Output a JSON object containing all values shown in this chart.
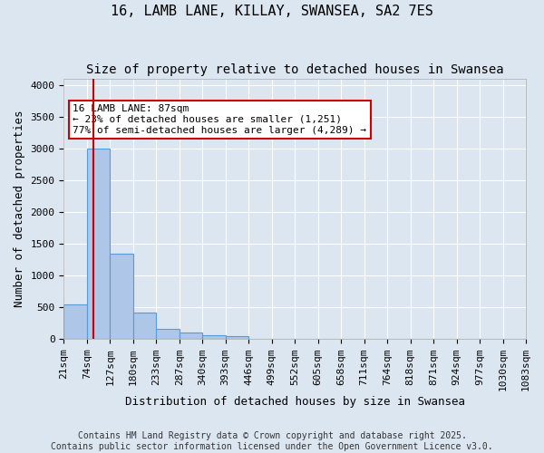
{
  "title1": "16, LAMB LANE, KILLAY, SWANSEA, SA2 7ES",
  "title2": "Size of property relative to detached houses in Swansea",
  "xlabel": "Distribution of detached houses by size in Swansea",
  "ylabel": "Number of detached properties",
  "bin_labels": [
    "21sqm",
    "74sqm",
    "127sqm",
    "180sqm",
    "233sqm",
    "287sqm",
    "340sqm",
    "393sqm",
    "446sqm",
    "499sqm",
    "552sqm",
    "605sqm",
    "658sqm",
    "711sqm",
    "764sqm",
    "818sqm",
    "871sqm",
    "924sqm",
    "977sqm",
    "1030sqm",
    "1083sqm"
  ],
  "bar_values": [
    550,
    3000,
    1350,
    420,
    165,
    100,
    65,
    50,
    10,
    0,
    0,
    0,
    0,
    0,
    0,
    0,
    0,
    0,
    0,
    0
  ],
  "bar_color": "#aec6e8",
  "bar_edge_color": "#5b9bd5",
  "property_label": "16 LAMB LANE: 87sqm",
  "annotation_line1": "← 23% of detached houses are smaller (1,251)",
  "annotation_line2": "77% of semi-detached houses are larger (4,289) →",
  "red_line_x": 1.3,
  "ylim": [
    0,
    4100
  ],
  "yticks": [
    0,
    500,
    1000,
    1500,
    2000,
    2500,
    3000,
    3500,
    4000
  ],
  "background_color": "#dce6f1",
  "plot_bg_color": "#dce6f1",
  "footer_line1": "Contains HM Land Registry data © Crown copyright and database right 2025.",
  "footer_line2": "Contains public sector information licensed under the Open Government Licence v3.0.",
  "annotation_box_color": "#ffffff",
  "annotation_box_edge": "#cc0000",
  "red_line_color": "#cc0000",
  "title_fontsize": 11,
  "axis_label_fontsize": 9,
  "tick_fontsize": 8,
  "annotation_fontsize": 8,
  "footer_fontsize": 7
}
